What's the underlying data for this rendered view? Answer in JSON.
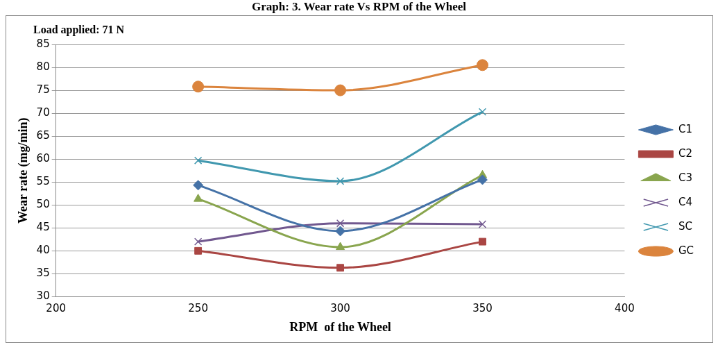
{
  "chart_data": {
    "type": "line",
    "title": "Graph: 3. Wear rate Vs RPM of the Wheel",
    "xlabel": "RPM  of the Wheel",
    "ylabel": "Wear rate (mg/min)",
    "annotations": [
      "Load applied: 71 N"
    ],
    "x": [
      250,
      300,
      350
    ],
    "xlim": [
      200,
      400
    ],
    "xticks": [
      200,
      250,
      300,
      350,
      400
    ],
    "ylim": [
      30,
      85
    ],
    "yticks": [
      30,
      35,
      40,
      45,
      50,
      55,
      60,
      65,
      70,
      75,
      80,
      85
    ],
    "grid": "y",
    "legend": "right",
    "series": [
      {
        "name": "C1",
        "color": "#4572a7",
        "marker": "diamond",
        "values": [
          54.3,
          44.3,
          55.5
        ]
      },
      {
        "name": "C2",
        "color": "#aa4643",
        "marker": "square",
        "values": [
          40,
          36.3,
          42
        ]
      },
      {
        "name": "C3",
        "color": "#89a54e",
        "marker": "triangle",
        "values": [
          51.3,
          40.8,
          56.5
        ]
      },
      {
        "name": "C4",
        "color": "#71588f",
        "marker": "cross",
        "values": [
          42,
          46,
          45.8
        ]
      },
      {
        "name": "SC",
        "color": "#4198af",
        "marker": "cross",
        "values": [
          59.7,
          55.2,
          70.3
        ]
      },
      {
        "name": "GC",
        "color": "#db843d",
        "marker": "circle",
        "values": [
          75.8,
          75,
          80.5
        ]
      }
    ]
  }
}
